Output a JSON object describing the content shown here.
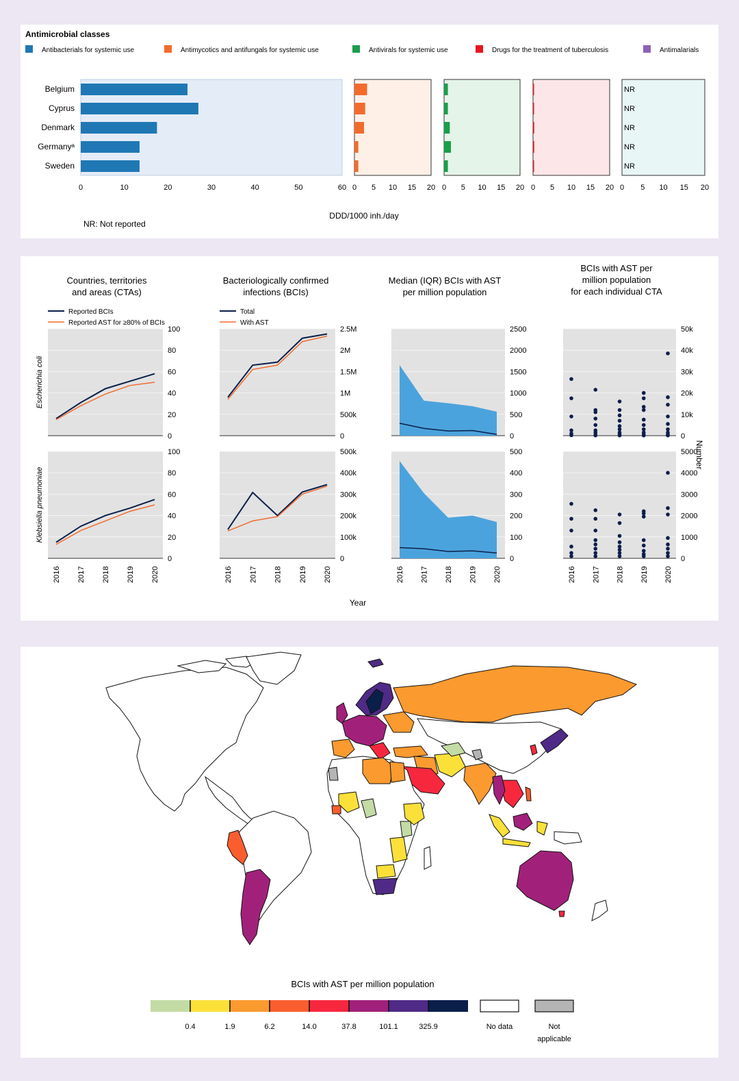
{
  "panel1": {
    "legend_title": "Antimicrobial classes",
    "classes": [
      {
        "name": "Antibacterials for systemic use",
        "color": "#1f78b4"
      },
      {
        "name": "Antimycotics and antifungals for systemic use",
        "color": "#f26b2d"
      },
      {
        "name": "Antivirals for systemic use",
        "color": "#1a9e4b"
      },
      {
        "name": "Drugs for the treatment of tuberculosis",
        "color": "#e8141f"
      },
      {
        "name": "Antimalarials",
        "color": "#8c62b4"
      }
    ],
    "xlabel": "DDD/1000 inh./day",
    "footnote": "NR: Not reported",
    "nr_label": "NR"
  },
  "panel2": {
    "col_titles": [
      [
        "Countries, territories",
        "and areas (CTAs)"
      ],
      [
        "Bacteriologically confirmed",
        "infections (BCIs)"
      ],
      [
        "Median (IQR) BCIs with AST",
        "per million population"
      ],
      [
        "BCIs with AST per",
        "million population",
        "for each individual CTA"
      ]
    ],
    "legend_a": [
      "Reported BCIs",
      "Reported AST for ≥80% of BCIs"
    ],
    "legend_b": [
      "Total",
      "With AST"
    ],
    "row_labels": [
      "Escherichia coli",
      "Klebsiella pneumoniae"
    ],
    "xlabel": "Year",
    "ylabel_right": "Number",
    "years": [
      "2016",
      "2017",
      "2018",
      "2019",
      "2020"
    ]
  },
  "panel3": {
    "legend_title": "BCIs with AST per million population",
    "thresholds": [
      "0.4",
      "1.9",
      "6.2",
      "14.0",
      "37.8",
      "101.1",
      "325.9"
    ],
    "colors": [
      "#c3dba5",
      "#fbe03a",
      "#fb9a2f",
      "#fb5e2e",
      "#f7283e",
      "#a1217a",
      "#4f2a86",
      "#0b1f4b"
    ],
    "no_data": "No data",
    "not_applicable": [
      "Not",
      "applicable"
    ]
  },
  "chart_data": [
    {
      "type": "bar",
      "title": "Antimicrobial classes",
      "xlabel": "DDD/1000 inh./day",
      "categories": [
        "Belgium",
        "Cyprus",
        "Denmark",
        "Germanyᵃ",
        "Sweden"
      ],
      "series": [
        {
          "name": "Antibacterials for systemic use",
          "values": [
            24.5,
            27,
            17.5,
            13.5,
            13.5
          ],
          "xlim": [
            0,
            60
          ],
          "ticks": [
            0,
            10,
            20,
            30,
            40,
            50,
            60
          ]
        },
        {
          "name": "Antimycotics and antifungals for systemic use",
          "values": [
            3.3,
            2.8,
            2.5,
            1,
            1
          ],
          "xlim": [
            0,
            20
          ],
          "ticks": [
            0,
            5,
            10,
            15,
            20
          ]
        },
        {
          "name": "Antivirals for systemic use",
          "values": [
            1,
            1,
            1.5,
            1.8,
            1
          ],
          "xlim": [
            0,
            20
          ],
          "ticks": [
            0,
            5,
            10,
            15,
            20
          ]
        },
        {
          "name": "Drugs for the treatment of tuberculosis",
          "values": [
            0.2,
            0.2,
            0.3,
            0.3,
            0.2
          ],
          "xlim": [
            0,
            20
          ],
          "ticks": [
            0,
            5,
            10,
            15,
            20
          ]
        },
        {
          "name": "Antimalarials",
          "values": [
            "NR",
            "NR",
            "NR",
            "NR",
            "NR"
          ],
          "xlim": [
            0,
            20
          ],
          "ticks": [
            0,
            5,
            10,
            15,
            20
          ]
        }
      ],
      "footnote": "NR: Not reported"
    },
    {
      "type": "line",
      "row": "Escherichia coli",
      "title": "Countries, territories and areas (CTAs)",
      "x": [
        2016,
        2017,
        2018,
        2019,
        2020
      ],
      "ylim": [
        0,
        100
      ],
      "yticks": [
        "0",
        "20",
        "40",
        "60",
        "80",
        "100"
      ],
      "series": [
        {
          "name": "Reported BCIs",
          "values": [
            16,
            31,
            44,
            51,
            58
          ]
        },
        {
          "name": "Reported AST for ≥80% of BCIs",
          "values": [
            15,
            28,
            39,
            47,
            50
          ]
        }
      ]
    },
    {
      "type": "line",
      "row": "Escherichia coli",
      "title": "Bacteriologically confirmed infections (BCIs)",
      "x": [
        2016,
        2017,
        2018,
        2019,
        2020
      ],
      "ylim": [
        0,
        2500000
      ],
      "yticks": [
        "0",
        "500k",
        "1M",
        "1.5M",
        "2M",
        "2.5M"
      ],
      "series": [
        {
          "name": "Total",
          "values": [
            900000,
            1650000,
            1720000,
            2280000,
            2380000
          ]
        },
        {
          "name": "With AST",
          "values": [
            850000,
            1550000,
            1650000,
            2200000,
            2330000
          ]
        }
      ]
    },
    {
      "type": "area",
      "row": "Escherichia coli",
      "title": "Median (IQR) BCIs with AST per million population",
      "x": [
        2016,
        2017,
        2018,
        2019,
        2020
      ],
      "ylim": [
        0,
        2500
      ],
      "yticks": [
        "0",
        "500",
        "1000",
        "1500",
        "2000",
        "2500"
      ],
      "series": [
        {
          "name": "IQR upper",
          "values": [
            1650,
            820,
            760,
            690,
            560
          ]
        },
        {
          "name": "IQR lower",
          "values": [
            0,
            0,
            0,
            0,
            0
          ]
        },
        {
          "name": "Median",
          "values": [
            290,
            170,
            110,
            120,
            30
          ]
        }
      ]
    },
    {
      "type": "scatter",
      "row": "Escherichia coli",
      "title": "BCIs with AST per million population for each individual CTA",
      "x": [
        2016,
        2017,
        2018,
        2019,
        2020
      ],
      "ylim": [
        0,
        50000
      ],
      "yticks": [
        "0",
        "10k",
        "20k",
        "30k",
        "40k",
        "50k"
      ],
      "points": [
        [
          2016,
          26500
        ],
        [
          2016,
          17500
        ],
        [
          2016,
          9000
        ],
        [
          2016,
          2500
        ],
        [
          2016,
          1000
        ],
        [
          2016,
          200
        ],
        [
          2017,
          21500
        ],
        [
          2017,
          12000
        ],
        [
          2017,
          11000
        ],
        [
          2017,
          8000
        ],
        [
          2017,
          5000
        ],
        [
          2017,
          2500
        ],
        [
          2017,
          1500
        ],
        [
          2017,
          500
        ],
        [
          2017,
          100
        ],
        [
          2018,
          16000
        ],
        [
          2018,
          12000
        ],
        [
          2018,
          9500
        ],
        [
          2018,
          7000
        ],
        [
          2018,
          4500
        ],
        [
          2018,
          3000
        ],
        [
          2018,
          1500
        ],
        [
          2018,
          500
        ],
        [
          2018,
          100
        ],
        [
          2019,
          20000
        ],
        [
          2019,
          17500
        ],
        [
          2019,
          13500
        ],
        [
          2019,
          12000
        ],
        [
          2019,
          7500
        ],
        [
          2019,
          5000
        ],
        [
          2019,
          3000
        ],
        [
          2019,
          1500
        ],
        [
          2019,
          500
        ],
        [
          2019,
          100
        ],
        [
          2020,
          38500
        ],
        [
          2020,
          18000
        ],
        [
          2020,
          14500
        ],
        [
          2020,
          9000
        ],
        [
          2020,
          5500
        ],
        [
          2020,
          3000
        ],
        [
          2020,
          1500
        ],
        [
          2020,
          500
        ],
        [
          2020,
          100
        ]
      ]
    },
    {
      "type": "line",
      "row": "Klebsiella pneumoniae",
      "title": "Countries, territories and areas (CTAs)",
      "x": [
        2016,
        2017,
        2018,
        2019,
        2020
      ],
      "ylim": [
        0,
        100
      ],
      "yticks": [
        "0",
        "20",
        "40",
        "60",
        "80",
        "100"
      ],
      "series": [
        {
          "name": "Reported BCIs",
          "values": [
            15,
            30,
            40,
            47,
            55
          ]
        },
        {
          "name": "Reported AST for ≥80% of BCIs",
          "values": [
            13,
            26,
            35,
            44,
            50
          ]
        }
      ]
    },
    {
      "type": "line",
      "row": "Klebsiella pneumoniae",
      "title": "Bacteriologically confirmed infections (BCIs)",
      "x": [
        2016,
        2017,
        2018,
        2019,
        2020
      ],
      "ylim": [
        0,
        500000
      ],
      "yticks": [
        "0",
        "100k",
        "200k",
        "300k",
        "400k",
        "500k"
      ],
      "series": [
        {
          "name": "Total",
          "values": [
            135000,
            308000,
            200000,
            310000,
            345000
          ]
        },
        {
          "name": "With AST",
          "values": [
            128000,
            175000,
            195000,
            300000,
            338000
          ]
        }
      ]
    },
    {
      "type": "area",
      "row": "Klebsiella pneumoniae",
      "title": "Median (IQR) BCIs with AST per million population",
      "x": [
        2016,
        2017,
        2018,
        2019,
        2020
      ],
      "ylim": [
        0,
        500
      ],
      "yticks": [
        "0",
        "100",
        "200",
        "300",
        "400",
        "500"
      ],
      "series": [
        {
          "name": "IQR upper",
          "values": [
            455,
            305,
            190,
            200,
            170
          ]
        },
        {
          "name": "IQR lower",
          "values": [
            0,
            0,
            0,
            0,
            0
          ]
        },
        {
          "name": "Median",
          "values": [
            50,
            45,
            32,
            35,
            25
          ]
        }
      ]
    },
    {
      "type": "scatter",
      "row": "Klebsiella pneumoniae",
      "title": "BCIs with AST per million population for each individual CTA",
      "x": [
        2016,
        2017,
        2018,
        2019,
        2020
      ],
      "ylim": [
        0,
        5000
      ],
      "yticks": [
        "0",
        "1000",
        "2000",
        "3000",
        "4000",
        "5000"
      ],
      "points": [
        [
          2016,
          2550
        ],
        [
          2016,
          1850
        ],
        [
          2016,
          1300
        ],
        [
          2016,
          550
        ],
        [
          2016,
          250
        ],
        [
          2016,
          100
        ],
        [
          2017,
          2250
        ],
        [
          2017,
          1850
        ],
        [
          2017,
          1300
        ],
        [
          2017,
          850
        ],
        [
          2017,
          650
        ],
        [
          2017,
          450
        ],
        [
          2017,
          250
        ],
        [
          2017,
          100
        ],
        [
          2018,
          2050
        ],
        [
          2018,
          1650
        ],
        [
          2018,
          1050
        ],
        [
          2018,
          750
        ],
        [
          2018,
          550
        ],
        [
          2018,
          400
        ],
        [
          2018,
          250
        ],
        [
          2018,
          100
        ],
        [
          2019,
          2200
        ],
        [
          2019,
          2100
        ],
        [
          2019,
          1950
        ],
        [
          2019,
          850
        ],
        [
          2019,
          600
        ],
        [
          2019,
          350
        ],
        [
          2019,
          200
        ],
        [
          2019,
          100
        ],
        [
          2020,
          4000
        ],
        [
          2020,
          2350
        ],
        [
          2020,
          2050
        ],
        [
          2020,
          950
        ],
        [
          2020,
          650
        ],
        [
          2020,
          450
        ],
        [
          2020,
          250
        ],
        [
          2020,
          100
        ]
      ]
    }
  ]
}
